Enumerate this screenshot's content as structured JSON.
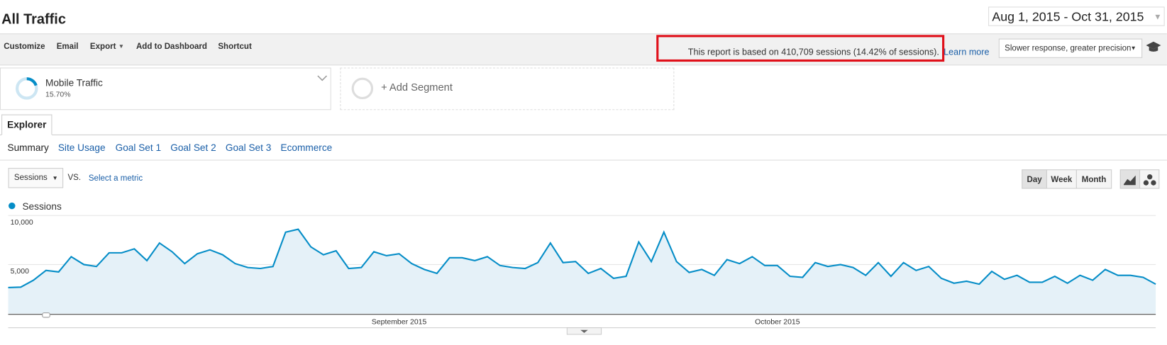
{
  "header": {
    "title": "All Traffic",
    "date_range": "Aug 1, 2015 - Oct 31, 2015"
  },
  "toolbar": {
    "items": [
      "Customize",
      "Email",
      "Export",
      "Add to Dashboard",
      "Shortcut"
    ],
    "sampling_notice": "This report is based on 410,709 sessions (14.42% of sessions).",
    "learn_more": "Learn more",
    "precision_select": "Slower response, greater precision"
  },
  "segments": {
    "active": {
      "name": "Mobile Traffic",
      "share": "15.70%"
    },
    "add": "+ Add Segment"
  },
  "tabs": {
    "main": "Explorer",
    "sub": [
      "Summary",
      "Site Usage",
      "Goal Set 1",
      "Goal Set 2",
      "Goal Set 3",
      "Ecommerce"
    ]
  },
  "controls": {
    "metric": "Sessions",
    "vs": "VS.",
    "select_metric": "Select a metric",
    "intervals": [
      "Day",
      "Week",
      "Month"
    ]
  },
  "chart_data": {
    "type": "area",
    "categories": [
      null,
      null,
      null,
      null,
      null,
      null,
      null,
      null,
      null,
      null,
      null,
      null,
      null,
      null,
      null,
      null,
      null,
      null,
      null,
      null,
      null,
      null,
      null,
      null,
      null,
      null,
      null,
      null,
      null,
      null,
      null,
      "September 2015",
      null,
      null,
      null,
      null,
      null,
      null,
      null,
      null,
      null,
      null,
      null,
      null,
      null,
      null,
      null,
      null,
      null,
      null,
      null,
      null,
      null,
      null,
      null,
      null,
      null,
      null,
      null,
      null,
      null,
      "October 2015",
      null,
      null,
      null,
      null,
      null,
      null,
      null,
      null,
      null,
      null,
      null,
      null,
      null,
      null,
      null,
      null,
      null,
      null,
      null,
      null,
      null,
      null,
      null,
      null,
      null,
      null,
      null,
      null,
      null,
      null
    ],
    "series": [
      {
        "name": "Sessions",
        "color": "#058dc7",
        "values": [
          2650,
          2700,
          3400,
          4400,
          4250,
          5800,
          5000,
          4800,
          6200,
          6200,
          6600,
          5400,
          7200,
          6300,
          5100,
          6100,
          6500,
          6000,
          5100,
          4700,
          4600,
          4800,
          8300,
          8600,
          6800,
          6000,
          6400,
          4600,
          4700,
          6300,
          5900,
          6100,
          5100,
          4500,
          4100,
          5700,
          5700,
          5400,
          5800,
          4900,
          4700,
          4600,
          5200,
          7200,
          5200,
          5300,
          4100,
          4600,
          3600,
          3800,
          7300,
          5300,
          8300,
          5300,
          4200,
          4500,
          3900,
          5500,
          5100,
          5800,
          4900,
          4900,
          3800,
          3700,
          5200,
          4800,
          5000,
          4700,
          3900,
          5200,
          3800,
          5200,
          4400,
          4800,
          3600,
          3100,
          3300,
          3000,
          4300,
          3500,
          3900,
          3200,
          3200,
          3800,
          3100,
          3900,
          3400,
          4500,
          3900,
          3900,
          3700,
          3000
        ]
      }
    ],
    "ylim": [
      0,
      10000
    ],
    "yticks": [
      {
        "value": 5000,
        "label": "5,000"
      },
      {
        "value": 10000,
        "label": "10,000"
      }
    ],
    "grid": true
  }
}
